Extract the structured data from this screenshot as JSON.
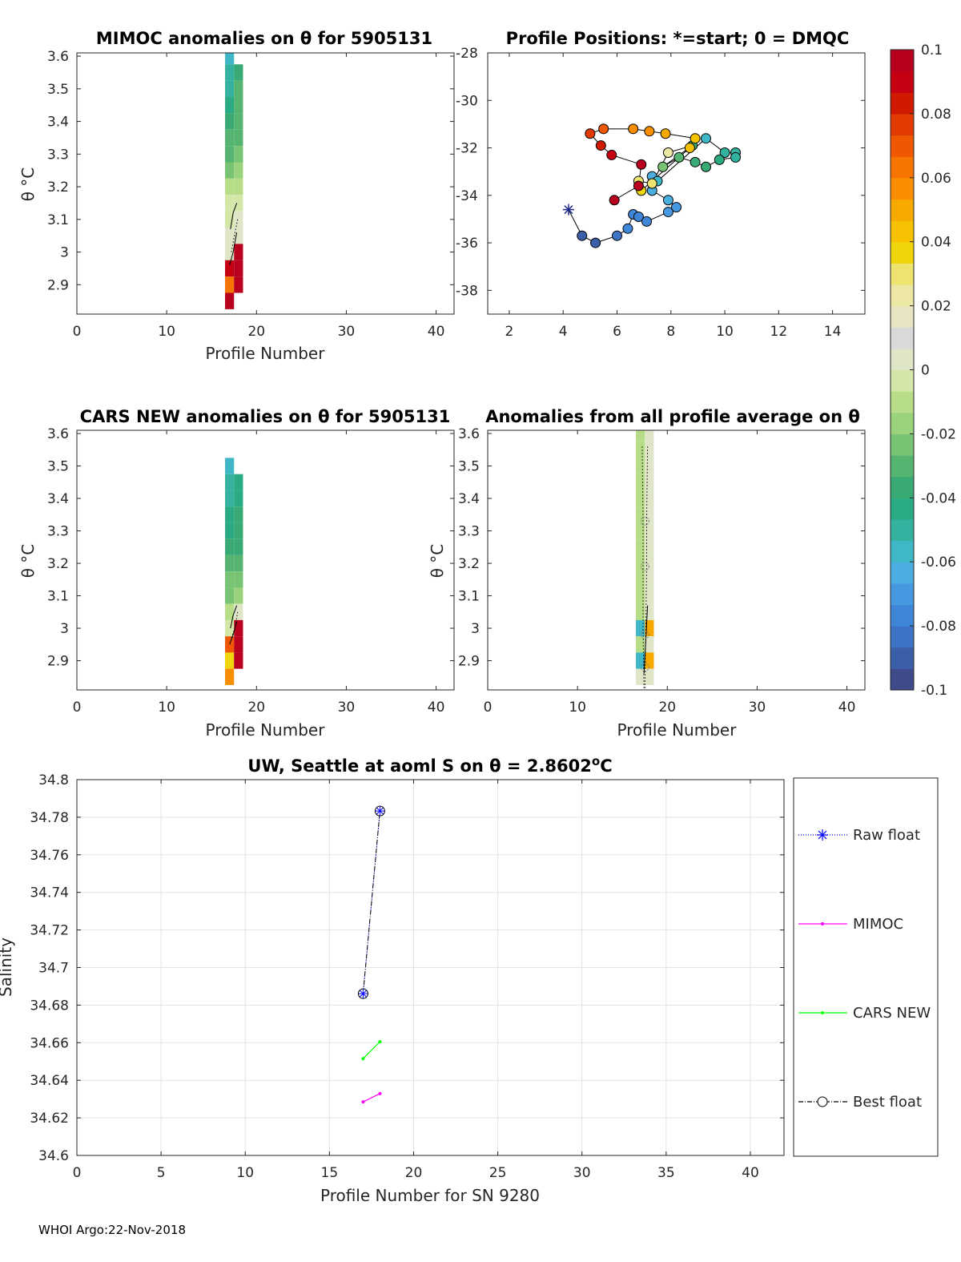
{
  "footer": "WHOI Argo:22-Nov-2018",
  "colors": {
    "cmap": [
      "#3e4a89",
      "#3b5ea8",
      "#3d72c4",
      "#3f86d8",
      "#4699e0",
      "#4aaee0",
      "#3fb7c6",
      "#32b29f",
      "#2bab84",
      "#3aaa74",
      "#55b46f",
      "#79c474",
      "#9bd27c",
      "#b8dd88",
      "#d4e7a8",
      "#dfe6c8",
      "#d9d9d9",
      "#e8e4c2",
      "#ece7a2",
      "#efe370",
      "#efd50a",
      "#f6c100",
      "#f7a900",
      "#f98f00",
      "#f67500",
      "#ef5800",
      "#e23a00",
      "#cf1a00",
      "#c40012",
      "#b8001e"
    ],
    "raw_float": "#0000ff",
    "mimoc": "#ff00ff",
    "cars": "#00ff00",
    "best_float": "#000000"
  },
  "colorbar": {
    "range": [
      -0.1,
      0.1
    ],
    "ticks": [
      "0.1",
      "0.08",
      "0.06",
      "0.04",
      "0.02",
      "0",
      "-0.02",
      "-0.04",
      "-0.06",
      "-0.08",
      "-0.1"
    ]
  },
  "chart_data": [
    {
      "id": "mimoc",
      "type": "heatmap",
      "title": "MIMOC anomalies on θ  for 5905131",
      "xlabel": "Profile Number",
      "ylabel": "θ °C",
      "xlim": [
        0,
        42
      ],
      "ylim": [
        2.81,
        3.61
      ],
      "xticks": [
        0,
        10,
        20,
        30,
        40
      ],
      "yticks": [
        2.9,
        3,
        3.1,
        3.2,
        3.3,
        3.4,
        3.5,
        3.6
      ],
      "ytick_labels": [
        "2.9",
        "3",
        "3.1",
        "3.2",
        "3.3",
        "3.4",
        "3.5",
        "3.6"
      ],
      "columns": [
        {
          "profile": 17,
          "theta": [
            3.6,
            3.55,
            3.5,
            3.45,
            3.4,
            3.35,
            3.3,
            3.25,
            3.2,
            3.15,
            3.1,
            3.05,
            3.0,
            2.95,
            2.9,
            2.85
          ],
          "values": [
            -0.055,
            -0.05,
            -0.048,
            -0.042,
            -0.035,
            -0.032,
            -0.03,
            -0.02,
            -0.012,
            -0.005,
            -0.002,
            0.002,
            0.004,
            0.09,
            0.065,
            0.1
          ]
        },
        {
          "profile": 18,
          "theta": [
            3.55,
            3.5,
            3.45,
            3.4,
            3.35,
            3.3,
            3.25,
            3.2,
            3.15,
            3.1,
            3.05,
            3.0,
            2.95,
            2.9
          ],
          "values": [
            -0.035,
            -0.03,
            -0.032,
            -0.03,
            -0.028,
            -0.022,
            -0.018,
            -0.012,
            -0.005,
            0.0,
            0.005,
            0.1,
            0.1,
            0.1
          ]
        }
      ],
      "lines": [
        {
          "style": "solid",
          "x": [
            17.1,
            17.4,
            17.8
          ],
          "y": [
            3.07,
            3.12,
            3.15
          ]
        },
        {
          "style": "dotted",
          "x": [
            17.2,
            17.6,
            17.9
          ],
          "y": [
            3.0,
            3.06,
            3.1
          ]
        },
        {
          "style": "solid",
          "x": [
            17.0,
            17.4,
            17.8
          ],
          "y": [
            2.96,
            3.0,
            3.06
          ]
        }
      ]
    },
    {
      "id": "positions",
      "type": "scatter",
      "title": "Profile Positions: *=start; 0 = DMQC",
      "xlim": [
        1.2,
        15.2
      ],
      "ylim": [
        -39,
        -28
      ],
      "xticks": [
        2,
        4,
        6,
        8,
        10,
        12,
        14
      ],
      "yticks": [
        -28,
        -30,
        -32,
        -34,
        -36,
        -38
      ],
      "start": {
        "x": 4.2,
        "y": -34.6
      },
      "points": [
        {
          "x": 4.7,
          "y": -35.7,
          "c": -0.09
        },
        {
          "x": 5.2,
          "y": -36.0,
          "c": -0.09
        },
        {
          "x": 6.0,
          "y": -35.7,
          "c": -0.085
        },
        {
          "x": 6.4,
          "y": -35.4,
          "c": -0.08
        },
        {
          "x": 6.6,
          "y": -34.8,
          "c": -0.078
        },
        {
          "x": 6.8,
          "y": -34.9,
          "c": -0.076
        },
        {
          "x": 7.1,
          "y": -35.1,
          "c": -0.074
        },
        {
          "x": 7.9,
          "y": -34.7,
          "c": -0.07
        },
        {
          "x": 8.2,
          "y": -34.5,
          "c": -0.068
        },
        {
          "x": 7.9,
          "y": -34.2,
          "c": -0.066
        },
        {
          "x": 7.3,
          "y": -33.8,
          "c": -0.064
        },
        {
          "x": 7.3,
          "y": -33.2,
          "c": -0.062
        },
        {
          "x": 7.5,
          "y": -33.4,
          "c": -0.06
        },
        {
          "x": 9.3,
          "y": -31.6,
          "c": -0.055
        },
        {
          "x": 10.0,
          "y": -32.2,
          "c": -0.05
        },
        {
          "x": 10.4,
          "y": -32.2,
          "c": -0.05
        },
        {
          "x": 10.4,
          "y": -32.4,
          "c": -0.048
        },
        {
          "x": 9.8,
          "y": -32.5,
          "c": -0.042
        },
        {
          "x": 9.3,
          "y": -32.8,
          "c": -0.038
        },
        {
          "x": 8.9,
          "y": -32.6,
          "c": -0.034
        },
        {
          "x": 8.3,
          "y": -32.4,
          "c": -0.03
        },
        {
          "x": 7.7,
          "y": -32.8,
          "c": -0.024
        },
        {
          "x": 8.8,
          "y": -31.9,
          "c": -0.04
        },
        {
          "x": 7.9,
          "y": -32.2,
          "c": 0.025
        },
        {
          "x": 7.3,
          "y": -33.5,
          "c": 0.03
        },
        {
          "x": 6.8,
          "y": -33.4,
          "c": 0.032
        },
        {
          "x": 6.9,
          "y": -33.8,
          "c": 0.034
        },
        {
          "x": 8.7,
          "y": -32.0,
          "c": 0.04
        },
        {
          "x": 8.9,
          "y": -31.6,
          "c": 0.045
        },
        {
          "x": 7.8,
          "y": -31.4,
          "c": 0.05
        },
        {
          "x": 7.2,
          "y": -31.3,
          "c": 0.055
        },
        {
          "x": 6.6,
          "y": -31.2,
          "c": 0.06
        },
        {
          "x": 5.5,
          "y": -31.2,
          "c": 0.068
        },
        {
          "x": 5.0,
          "y": -31.4,
          "c": 0.075
        },
        {
          "x": 5.4,
          "y": -31.9,
          "c": 0.085
        },
        {
          "x": 5.8,
          "y": -32.3,
          "c": 0.09
        },
        {
          "x": 6.9,
          "y": -32.7,
          "c": 0.1
        },
        {
          "x": 6.8,
          "y": -33.6,
          "c": 0.1
        },
        {
          "x": 5.9,
          "y": -34.2,
          "c": 0.1
        }
      ]
    },
    {
      "id": "cars",
      "type": "heatmap",
      "title": "CARS NEW anomalies on θ for 5905131",
      "xlabel": "Profile Number",
      "ylabel": "θ °C",
      "xlim": [
        0,
        42
      ],
      "ylim": [
        2.81,
        3.61
      ],
      "xticks": [
        0,
        10,
        20,
        30,
        40
      ],
      "yticks": [
        2.9,
        3,
        3.1,
        3.2,
        3.3,
        3.4,
        3.5,
        3.6
      ],
      "ytick_labels": [
        "2.9",
        "3",
        "3.1",
        "3.2",
        "3.3",
        "3.4",
        "3.5",
        "3.6"
      ],
      "columns": [
        {
          "profile": 17,
          "theta": [
            3.5,
            3.45,
            3.4,
            3.35,
            3.3,
            3.25,
            3.2,
            3.15,
            3.1,
            3.05,
            3.0,
            2.95,
            2.9,
            2.85
          ],
          "values": [
            -0.055,
            -0.052,
            -0.048,
            -0.046,
            -0.044,
            -0.035,
            -0.03,
            -0.025,
            -0.02,
            -0.012,
            -0.005,
            0.07,
            0.035,
            0.06
          ]
        },
        {
          "profile": 18,
          "theta": [
            3.45,
            3.4,
            3.35,
            3.3,
            3.25,
            3.2,
            3.15,
            3.1,
            3.05,
            3.0,
            2.95,
            2.9
          ],
          "values": [
            -0.045,
            -0.042,
            -0.04,
            -0.04,
            -0.035,
            -0.028,
            -0.022,
            -0.015,
            0.0,
            0.1,
            0.1,
            0.1
          ]
        }
      ],
      "lines": [
        {
          "style": "solid",
          "x": [
            17.1,
            17.4,
            17.8
          ],
          "y": [
            3.0,
            3.04,
            3.07
          ]
        },
        {
          "style": "dotted",
          "x": [
            17.2,
            17.6,
            17.9
          ],
          "y": [
            2.97,
            3.0,
            3.05
          ]
        },
        {
          "style": "solid",
          "x": [
            17.0,
            17.4,
            17.8
          ],
          "y": [
            2.95,
            2.98,
            3.02
          ]
        }
      ]
    },
    {
      "id": "allavg",
      "type": "heatmap",
      "title": "Anomalies from all profile average on θ",
      "xlabel": "Profile Number",
      "ylabel": "θ °C",
      "xlim": [
        0,
        42
      ],
      "ylim": [
        2.81,
        3.61
      ],
      "xticks": [
        0,
        10,
        20,
        30,
        40
      ],
      "yticks": [
        2.9,
        3,
        3.1,
        3.2,
        3.3,
        3.4,
        3.5,
        3.6
      ],
      "ytick_labels": [
        "2.9",
        "3",
        "3.1",
        "3.2",
        "3.3",
        "3.4",
        "3.5",
        "3.6"
      ],
      "columns": [
        {
          "profile": 17,
          "theta": [
            3.6,
            3.55,
            3.5,
            3.45,
            3.4,
            3.35,
            3.3,
            3.25,
            3.2,
            3.15,
            3.1,
            3.05,
            3.0,
            2.95,
            2.9,
            2.85
          ],
          "values": [
            -0.012,
            -0.012,
            -0.01,
            -0.01,
            -0.012,
            -0.012,
            -0.01,
            -0.012,
            -0.012,
            -0.01,
            -0.012,
            -0.01,
            -0.055,
            -0.01,
            -0.055,
            0.0
          ]
        },
        {
          "profile": 18,
          "theta": [
            3.6,
            3.55,
            3.5,
            3.45,
            3.4,
            3.35,
            3.3,
            3.25,
            3.2,
            3.15,
            3.1,
            3.05,
            3.0,
            2.95,
            2.9,
            2.85
          ],
          "values": [
            0.0,
            0.002,
            0.0,
            0.002,
            0.0,
            0.002,
            0.0,
            0.002,
            0.002,
            0.004,
            0.004,
            0.006,
            0.05,
            0.006,
            0.05,
            0.004
          ]
        }
      ],
      "lines": [
        {
          "style": "dotted",
          "x": [
            17.2,
            17.3,
            17.3,
            17.3,
            17.4
          ],
          "y": [
            3.56,
            3.34,
            3.19,
            3.0,
            2.81
          ]
        },
        {
          "style": "dotted",
          "x": [
            17.8,
            17.7,
            17.7,
            17.6,
            17.5
          ],
          "y": [
            3.56,
            3.34,
            3.19,
            3.0,
            2.81
          ]
        },
        {
          "style": "solid",
          "x": [
            17.4,
            17.6,
            17.8
          ],
          "y": [
            2.86,
            2.96,
            3.07
          ]
        }
      ],
      "markers": [
        {
          "x": 17.5,
          "y": 3.33
        },
        {
          "x": 17.5,
          "y": 3.19
        },
        {
          "x": 17.5,
          "y": 2.98
        },
        {
          "x": 17.5,
          "y": 2.88
        }
      ]
    },
    {
      "id": "salinity",
      "type": "line",
      "title": "UW, Seattle at aoml S on θ = 2.8602",
      "title_sup": "o",
      "title_end": "C",
      "xlabel": "Profile Number for SN 9280",
      "ylabel": "Salinity",
      "xlim": [
        0,
        42
      ],
      "ylim": [
        34.6,
        34.8
      ],
      "xticks": [
        0,
        5,
        10,
        15,
        20,
        25,
        30,
        35,
        40
      ],
      "yticks": [
        34.6,
        34.62,
        34.64,
        34.66,
        34.68,
        34.7,
        34.72,
        34.74,
        34.76,
        34.78,
        34.8
      ],
      "ytick_labels": [
        "34.6",
        "34.62",
        "34.64",
        "34.66",
        "34.68",
        "34.7",
        "34.72",
        "34.74",
        "34.76",
        "34.78",
        "34.8"
      ],
      "grid": true,
      "series": [
        {
          "name": "Raw float",
          "x": [
            17,
            18
          ],
          "y": [
            34.6861,
            34.7833
          ]
        },
        {
          "name": "MIMOC",
          "x": [
            17,
            18
          ],
          "y": [
            34.6285,
            34.6329
          ]
        },
        {
          "name": "CARS NEW",
          "x": [
            17,
            18
          ],
          "y": [
            34.6515,
            34.6605
          ]
        },
        {
          "name": "Best float",
          "x": [
            17,
            18
          ],
          "y": [
            34.6861,
            34.7833
          ]
        }
      ]
    }
  ]
}
